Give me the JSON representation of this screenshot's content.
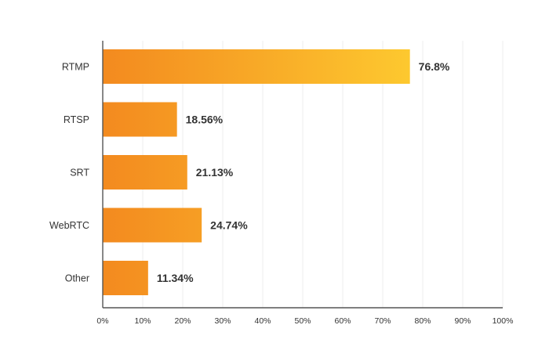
{
  "chart_data": {
    "type": "bar",
    "orientation": "horizontal",
    "categories": [
      "RTMP",
      "RTSP",
      "SRT",
      "WebRTC",
      "Other"
    ],
    "values": [
      76.8,
      18.56,
      21.13,
      24.74,
      11.34
    ],
    "value_labels": [
      "76.8%",
      "18.56%",
      "21.13%",
      "24.74%",
      "11.34%"
    ],
    "xlim": [
      0,
      100
    ],
    "x_ticks": [
      "0%",
      "10%",
      "20%",
      "30%",
      "40%",
      "50%",
      "60%",
      "70%",
      "80%",
      "90%",
      "100%"
    ],
    "grid": "vertical",
    "title": "",
    "xlabel": "",
    "ylabel": "",
    "colors": {
      "bar_start": "#f38a1f",
      "bar_end": "#fdc82f",
      "text": "#333333",
      "grid": "#eeeeee",
      "axis": "#555555"
    }
  }
}
